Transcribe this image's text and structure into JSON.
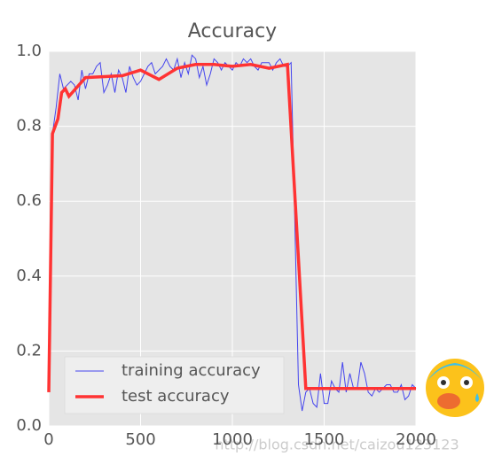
{
  "chart_data": {
    "type": "line",
    "title": "Accuracy",
    "xlim": [
      0,
      2000
    ],
    "xticks": [
      0,
      500,
      1000,
      1500,
      2000
    ],
    "ylim": [
      0,
      1
    ],
    "yticks": [
      {
        "value": 0,
        "label": "0.0"
      },
      {
        "value": 0.2,
        "label": "0.2"
      },
      {
        "value": 0.4,
        "label": "0.4"
      },
      {
        "value": 0.6,
        "label": "0.6"
      },
      {
        "value": 0.8,
        "label": "0.8"
      },
      {
        "value": 1,
        "label": "1.0"
      }
    ],
    "grid": true,
    "legend": "lower left",
    "series": [
      {
        "name": "training accuracy",
        "color": "#4444ee",
        "width": 1,
        "x": [
          0,
          20,
          40,
          60,
          80,
          100,
          120,
          140,
          160,
          180,
          200,
          220,
          240,
          260,
          280,
          300,
          320,
          340,
          360,
          380,
          400,
          420,
          440,
          460,
          480,
          500,
          520,
          540,
          560,
          580,
          600,
          620,
          640,
          660,
          680,
          700,
          720,
          740,
          760,
          780,
          800,
          820,
          840,
          860,
          880,
          900,
          920,
          940,
          960,
          980,
          1000,
          1020,
          1040,
          1060,
          1080,
          1100,
          1120,
          1140,
          1160,
          1180,
          1200,
          1220,
          1240,
          1260,
          1280,
          1300,
          1320,
          1340,
          1360,
          1380,
          1400,
          1420,
          1440,
          1460,
          1480,
          1500,
          1520,
          1540,
          1560,
          1580,
          1600,
          1620,
          1640,
          1660,
          1680,
          1700,
          1720,
          1740,
          1760,
          1780,
          1800,
          1820,
          1840,
          1860,
          1880,
          1900,
          1920,
          1940,
          1960,
          1980,
          2000
        ],
        "values": [
          0.1,
          0.78,
          0.85,
          0.94,
          0.9,
          0.91,
          0.92,
          0.91,
          0.87,
          0.95,
          0.9,
          0.94,
          0.94,
          0.96,
          0.97,
          0.89,
          0.91,
          0.94,
          0.89,
          0.95,
          0.93,
          0.89,
          0.96,
          0.93,
          0.91,
          0.92,
          0.94,
          0.96,
          0.97,
          0.94,
          0.95,
          0.96,
          0.98,
          0.96,
          0.95,
          0.98,
          0.93,
          0.97,
          0.94,
          0.99,
          0.98,
          0.93,
          0.96,
          0.91,
          0.94,
          0.98,
          0.97,
          0.95,
          0.97,
          0.96,
          0.95,
          0.97,
          0.96,
          0.98,
          0.97,
          0.98,
          0.96,
          0.95,
          0.97,
          0.97,
          0.97,
          0.95,
          0.97,
          0.98,
          0.96,
          0.96,
          0.97,
          0.55,
          0.11,
          0.04,
          0.09,
          0.1,
          0.06,
          0.05,
          0.14,
          0.06,
          0.06,
          0.12,
          0.1,
          0.09,
          0.17,
          0.09,
          0.14,
          0.1,
          0.1,
          0.17,
          0.14,
          0.09,
          0.08,
          0.1,
          0.09,
          0.1,
          0.11,
          0.11,
          0.09,
          0.09,
          0.11,
          0.07,
          0.08,
          0.11,
          0.1
        ]
      },
      {
        "name": "test accuracy",
        "color": "#ff3333",
        "width": 3.5,
        "x": [
          0,
          20,
          50,
          70,
          90,
          110,
          200,
          400,
          500,
          600,
          700,
          800,
          900,
          1000,
          1100,
          1200,
          1300,
          1400,
          1500,
          2000
        ],
        "values": [
          0.09,
          0.78,
          0.82,
          0.89,
          0.9,
          0.88,
          0.93,
          0.935,
          0.95,
          0.925,
          0.955,
          0.965,
          0.965,
          0.96,
          0.965,
          0.955,
          0.965,
          0.1,
          0.1,
          0.1
        ]
      }
    ],
    "watermark": "http://blog.csdn.net/caizou123123"
  }
}
